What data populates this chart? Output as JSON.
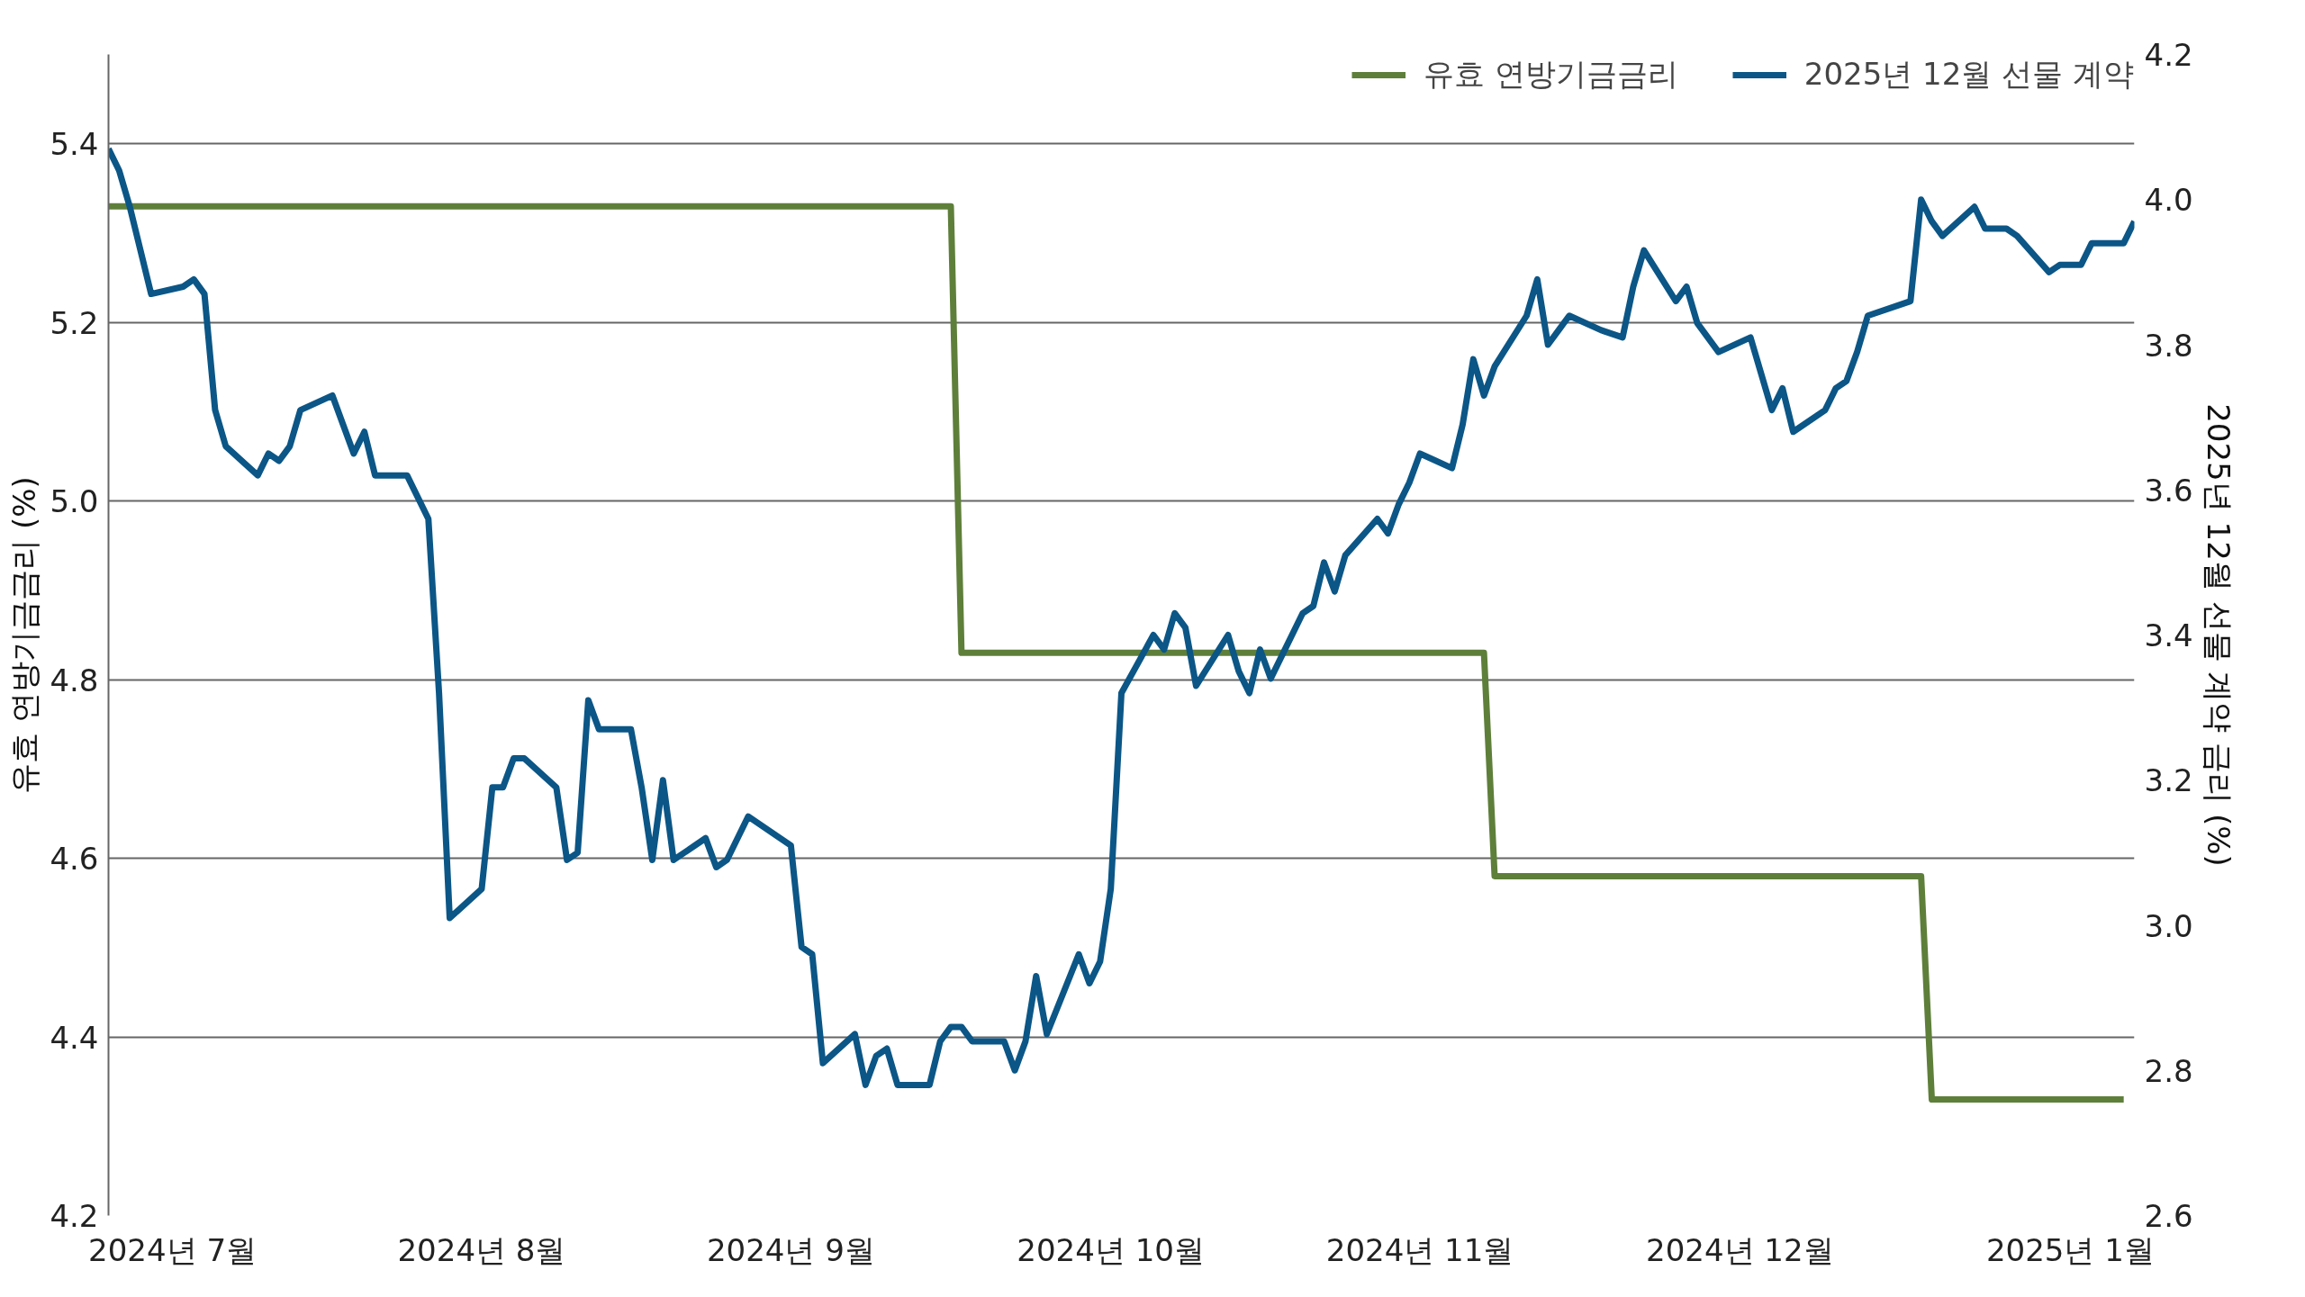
{
  "chart_data": {
    "type": "line",
    "ylabel": "유효 연방기금금리 (%)",
    "y2label": "2025년 12월 선물 계약 금리 (%)",
    "xlim": [
      "2024-07-01",
      "2025-01-07"
    ],
    "xticks": [
      {
        "value": "2024-07-07",
        "label": "2024년 7월"
      },
      {
        "value": "2024-08-05",
        "label": "2024년 8월"
      },
      {
        "value": "2024-09-03",
        "label": "2024년 9월"
      },
      {
        "value": "2024-10-03",
        "label": "2024년 10월"
      },
      {
        "value": "2024-11-01",
        "label": "2024년 11월"
      },
      {
        "value": "2024-12-01",
        "label": "2024년 12월"
      },
      {
        "value": "2025-01-01",
        "label": "2025년 1월"
      }
    ],
    "ylim": [
      4.2,
      5.5
    ],
    "yticks": [
      4.2,
      4.4,
      4.6,
      4.8,
      {
        "value": 5.0,
        "label": "5.0"
      },
      5.2,
      5.4
    ],
    "y2lim": [
      2.6,
      4.2
    ],
    "y2ticks": [
      2.6,
      2.8,
      {
        "value": 3.0,
        "label": "3.0"
      },
      3.2,
      3.4,
      3.6,
      3.8,
      {
        "value": 4.0,
        "label": "4.0"
      },
      4.2
    ],
    "grid": "y",
    "legend": "top right",
    "series": [
      {
        "name": "유효 연방기금금리",
        "color": "#5e7f3a",
        "x": [
          "2024-07-01",
          "2024-09-18",
          "2024-09-19",
          "2024-11-07",
          "2024-11-08",
          "2024-12-18",
          "2024-12-19",
          "2025-01-06"
        ],
        "values": [
          5.33,
          5.33,
          4.83,
          4.83,
          4.58,
          4.58,
          4.33,
          4.33
        ]
      },
      {
        "name": "2025년 12월 선물 계약",
        "color": "#0b5686",
        "axis": "y2",
        "x": [
          "2024-07-01",
          "2024-07-02",
          "2024-07-03",
          "2024-07-05",
          "2024-07-08",
          "2024-07-09",
          "2024-07-10",
          "2024-07-11",
          "2024-07-12",
          "2024-07-15",
          "2024-07-16",
          "2024-07-17",
          "2024-07-18",
          "2024-07-19",
          "2024-07-22",
          "2024-07-23",
          "2024-07-24",
          "2024-07-25",
          "2024-07-26",
          "2024-07-29",
          "2024-07-31",
          "2024-08-01",
          "2024-08-02",
          "2024-08-05",
          "2024-08-06",
          "2024-08-07",
          "2024-08-08",
          "2024-08-09",
          "2024-08-12",
          "2024-08-13",
          "2024-08-14",
          "2024-08-15",
          "2024-08-16",
          "2024-08-19",
          "2024-08-20",
          "2024-08-21",
          "2024-08-22",
          "2024-08-23",
          "2024-08-26",
          "2024-08-27",
          "2024-08-28",
          "2024-08-29",
          "2024-08-30",
          "2024-09-03",
          "2024-09-04",
          "2024-09-05",
          "2024-09-06",
          "2024-09-09",
          "2024-09-10",
          "2024-09-11",
          "2024-09-12",
          "2024-09-13",
          "2024-09-16",
          "2024-09-17",
          "2024-09-18",
          "2024-09-19",
          "2024-09-20",
          "2024-09-23",
          "2024-09-24",
          "2024-09-25",
          "2024-09-26",
          "2024-09-27",
          "2024-09-30",
          "2024-10-01",
          "2024-10-02",
          "2024-10-03",
          "2024-10-04",
          "2024-10-07",
          "2024-10-08",
          "2024-10-09",
          "2024-10-10",
          "2024-10-11",
          "2024-10-14",
          "2024-10-15",
          "2024-10-16",
          "2024-10-17",
          "2024-10-18",
          "2024-10-21",
          "2024-10-22",
          "2024-10-23",
          "2024-10-24",
          "2024-10-25",
          "2024-10-28",
          "2024-10-29",
          "2024-10-30",
          "2024-10-31",
          "2024-11-01",
          "2024-11-04",
          "2024-11-05",
          "2024-11-06",
          "2024-11-07",
          "2024-11-08",
          "2024-11-11",
          "2024-11-12",
          "2024-11-13",
          "2024-11-14",
          "2024-11-15",
          "2024-11-18",
          "2024-11-20",
          "2024-11-21",
          "2024-11-22",
          "2024-11-25",
          "2024-11-26",
          "2024-11-27",
          "2024-11-29",
          "2024-12-02",
          "2024-12-04",
          "2024-12-05",
          "2024-12-06",
          "2024-12-09",
          "2024-12-10",
          "2024-12-11",
          "2024-12-12",
          "2024-12-13",
          "2024-12-17",
          "2024-12-18",
          "2024-12-19",
          "2024-12-20",
          "2024-12-23",
          "2024-12-24",
          "2024-12-26",
          "2024-12-27",
          "2024-12-30",
          "2024-12-31",
          "2025-01-02",
          "2025-01-03",
          "2025-01-06",
          "2025-01-07"
        ],
        "values": [
          4.07,
          4.04,
          3.99,
          3.87,
          3.88,
          3.89,
          3.87,
          3.71,
          3.66,
          3.62,
          3.65,
          3.64,
          3.66,
          3.71,
          3.73,
          3.69,
          3.65,
          3.68,
          3.62,
          3.62,
          3.56,
          3.32,
          3.01,
          3.05,
          3.19,
          3.19,
          3.23,
          3.23,
          3.19,
          3.09,
          3.1,
          3.31,
          3.27,
          3.27,
          3.19,
          3.09,
          3.2,
          3.09,
          3.12,
          3.08,
          3.09,
          3.12,
          3.15,
          3.11,
          2.97,
          2.96,
          2.81,
          2.85,
          2.78,
          2.82,
          2.83,
          2.78,
          2.78,
          2.84,
          2.86,
          2.86,
          2.84,
          2.84,
          2.8,
          2.84,
          2.93,
          2.85,
          2.96,
          2.92,
          2.95,
          3.05,
          3.32,
          3.4,
          3.38,
          3.43,
          3.41,
          3.33,
          3.4,
          3.35,
          3.32,
          3.38,
          3.34,
          3.43,
          3.44,
          3.5,
          3.46,
          3.51,
          3.56,
          3.54,
          3.58,
          3.61,
          3.65,
          3.63,
          3.69,
          3.78,
          3.73,
          3.77,
          3.84,
          3.89,
          3.8,
          3.82,
          3.84,
          3.82,
          3.81,
          3.88,
          3.93,
          3.86,
          3.88,
          3.83,
          3.79,
          3.81,
          3.71,
          3.74,
          3.68,
          3.71,
          3.74,
          3.75,
          3.79,
          3.84,
          3.86,
          4.0,
          3.97,
          3.95,
          3.99,
          3.96,
          3.96,
          3.95,
          3.9,
          3.91,
          3.91,
          3.94,
          3.94,
          3.97
        ]
      }
    ]
  }
}
